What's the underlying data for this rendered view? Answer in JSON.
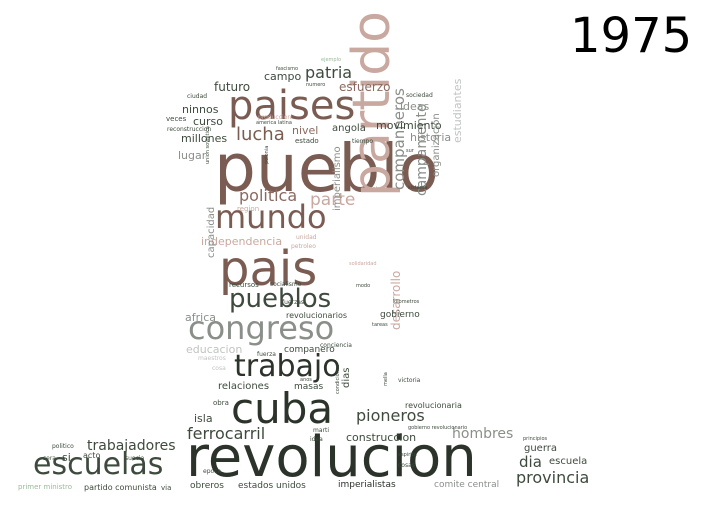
{
  "year_label": "1975",
  "palette": {
    "darkest": "#2b332b",
    "dark": "#3d4a3d",
    "brown": "#7a5c52",
    "brown_mid": "#8a6a60",
    "pink": "#c9a8a0",
    "pink_light": "#d8bcb4",
    "gray": "#8a8f8a",
    "gray_mid": "#a0a4a0",
    "light": "#c0c4c0",
    "green_light": "#9cb89c"
  },
  "words": [
    {
      "text": "revolucion",
      "tone": "darkest",
      "weight": 10
    },
    {
      "text": "pueblo",
      "tone": "brown",
      "weight": 10
    },
    {
      "text": "partido",
      "tone": "pink",
      "weight": 9
    },
    {
      "text": "pais",
      "tone": "brown",
      "weight": 8
    },
    {
      "text": "cuba",
      "tone": "darkest",
      "weight": 8
    },
    {
      "text": "paises",
      "tone": "brown",
      "weight": 7
    },
    {
      "text": "escuelas",
      "tone": "dark",
      "weight": 6
    },
    {
      "text": "congreso",
      "tone": "gray",
      "weight": 6
    },
    {
      "text": "mundo",
      "tone": "brown",
      "weight": 6
    },
    {
      "text": "trabajo",
      "tone": "darkest",
      "weight": 6
    },
    {
      "text": "pueblos",
      "tone": "dark",
      "weight": 5
    },
    {
      "text": "politica",
      "tone": "brown_mid",
      "weight": 4
    },
    {
      "text": "parte",
      "tone": "pink",
      "weight": 4
    },
    {
      "text": "lucha",
      "tone": "brown",
      "weight": 4
    },
    {
      "text": "patria",
      "tone": "dark",
      "weight": 4
    },
    {
      "text": "companneros",
      "tone": "gray",
      "weight": 4
    },
    {
      "text": "campamento",
      "tone": "gray",
      "weight": 4
    },
    {
      "text": "pioneros",
      "tone": "dark",
      "weight": 4
    },
    {
      "text": "ferrocarril",
      "tone": "dark",
      "weight": 4
    },
    {
      "text": "trabajadores",
      "tone": "dark",
      "weight": 3
    },
    {
      "text": "hombres",
      "tone": "gray",
      "weight": 3
    },
    {
      "text": "provincia",
      "tone": "dark",
      "weight": 3
    },
    {
      "text": "dia",
      "tone": "dark",
      "weight": 3
    },
    {
      "text": "desarrollo",
      "tone": "pink",
      "weight": 3
    },
    {
      "text": "esfuerzo",
      "tone": "brown_mid",
      "weight": 2
    },
    {
      "text": "futuro",
      "tone": "dark",
      "weight": 2
    },
    {
      "text": "campo",
      "tone": "dark",
      "weight": 2
    },
    {
      "text": "ninnos",
      "tone": "dark",
      "weight": 2
    },
    {
      "text": "curso",
      "tone": "dark",
      "weight": 2
    },
    {
      "text": "millones",
      "tone": "dark",
      "weight": 2
    },
    {
      "text": "lugar",
      "tone": "gray",
      "weight": 2
    },
    {
      "text": "nivel",
      "tone": "brown_mid",
      "weight": 2
    },
    {
      "text": "angola",
      "tone": "dark",
      "weight": 2
    },
    {
      "text": "movimiento",
      "tone": "dark",
      "weight": 2
    },
    {
      "text": "ideas",
      "tone": "gray",
      "weight": 2
    },
    {
      "text": "historia",
      "tone": "gray",
      "weight": 2
    },
    {
      "text": "organizacion",
      "tone": "gray",
      "weight": 2
    },
    {
      "text": "estudiantes",
      "tone": "light",
      "weight": 2
    },
    {
      "text": "independencia",
      "tone": "pink",
      "weight": 2
    },
    {
      "text": "capacidad",
      "tone": "gray",
      "weight": 2
    },
    {
      "text": "imperialismo",
      "tone": "gray",
      "weight": 2
    },
    {
      "text": "africa",
      "tone": "gray",
      "weight": 2
    },
    {
      "text": "educacion",
      "tone": "light",
      "weight": 2
    },
    {
      "text": "companero",
      "tone": "dark",
      "weight": 1
    },
    {
      "text": "relaciones",
      "tone": "dark",
      "weight": 2
    },
    {
      "text": "masas",
      "tone": "dark",
      "weight": 1
    },
    {
      "text": "dias",
      "tone": "dark",
      "weight": 2
    },
    {
      "text": "isla",
      "tone": "dark",
      "weight": 2
    },
    {
      "text": "construccion",
      "tone": "dark",
      "weight": 2
    },
    {
      "text": "guerra",
      "tone": "dark",
      "weight": 2
    },
    {
      "text": "escuela",
      "tone": "dark",
      "weight": 2
    },
    {
      "text": "gobierno",
      "tone": "dark",
      "weight": 1
    },
    {
      "text": "revolucionarios",
      "tone": "dark",
      "weight": 1
    },
    {
      "text": "revolucionaria",
      "tone": "dark",
      "weight": 1
    },
    {
      "text": "obreros",
      "tone": "dark",
      "weight": 1
    },
    {
      "text": "estados unidos",
      "tone": "dark",
      "weight": 1
    },
    {
      "text": "imperialistas",
      "tone": "darkest",
      "weight": 1
    },
    {
      "text": "comite central",
      "tone": "gray",
      "weight": 1
    },
    {
      "text": "partido comunista",
      "tone": "dark",
      "weight": 1
    },
    {
      "text": "primer ministro",
      "tone": "green_light",
      "weight": 1
    },
    {
      "text": "si",
      "tone": "dark",
      "weight": 2
    },
    {
      "text": "acto",
      "tone": "dark",
      "weight": 1
    },
    {
      "text": "obra",
      "tone": "dark",
      "weight": 1
    },
    {
      "text": "recursos",
      "tone": "dark",
      "weight": 1
    },
    {
      "text": "socialismo",
      "tone": "dark",
      "weight": 1
    },
    {
      "text": "sociedad",
      "tone": "dark",
      "weight": 1
    },
    {
      "text": "ciudad",
      "tone": "dark",
      "weight": 1
    },
    {
      "text": "veces",
      "tone": "dark",
      "weight": 1
    },
    {
      "text": "produccion",
      "tone": "pink",
      "weight": 1
    },
    {
      "text": "estado",
      "tone": "dark",
      "weight": 1
    },
    {
      "text": "tiempo",
      "tone": "dark",
      "weight": 1
    },
    {
      "text": "america latina",
      "tone": "dark",
      "weight": 1
    },
    {
      "text": "fascismo",
      "tone": "dark",
      "weight": 1
    },
    {
      "text": "numero",
      "tone": "dark",
      "weight": 1
    },
    {
      "text": "ejemplo",
      "tone": "green_light",
      "weight": 1
    },
    {
      "text": "sur",
      "tone": "dark",
      "weight": 1
    },
    {
      "text": "region",
      "tone": "pink",
      "weight": 1
    },
    {
      "text": "unidad",
      "tone": "pink",
      "weight": 1
    },
    {
      "text": "juventud",
      "tone": "pink",
      "weight": 1
    },
    {
      "text": "sistema",
      "tone": "dark",
      "weight": 1
    },
    {
      "text": "solidaridad",
      "tone": "pink",
      "weight": 1
    },
    {
      "text": "petroleo",
      "tone": "pink",
      "weight": 1
    },
    {
      "text": "modo",
      "tone": "dark",
      "weight": 1
    },
    {
      "text": "kilometros",
      "tone": "dark",
      "weight": 1
    },
    {
      "text": "fuerzas",
      "tone": "dark",
      "weight": 1
    },
    {
      "text": "tareas",
      "tone": "dark",
      "weight": 1
    },
    {
      "text": "conciencia",
      "tone": "dark",
      "weight": 1
    },
    {
      "text": "fuerza",
      "tone": "dark",
      "weight": 1
    },
    {
      "text": "victoria",
      "tone": "dark",
      "weight": 1
    },
    {
      "text": "marti",
      "tone": "dark",
      "weight": 1
    },
    {
      "text": "idea",
      "tone": "dark",
      "weight": 1
    },
    {
      "text": "gobierno revolucionario",
      "tone": "dark",
      "weight": 1
    },
    {
      "text": "principios",
      "tone": "dark",
      "weight": 1
    },
    {
      "text": "espiritu",
      "tone": "dark",
      "weight": 1
    },
    {
      "text": "cosas",
      "tone": "dark",
      "weight": 1
    },
    {
      "text": "politico",
      "tone": "dark",
      "weight": 1
    },
    {
      "text": "sera",
      "tone": "dark",
      "weight": 1
    },
    {
      "text": "suecia",
      "tone": "dark",
      "weight": 1
    },
    {
      "text": "via",
      "tone": "dark",
      "weight": 1
    },
    {
      "text": "epoca",
      "tone": "dark",
      "weight": 1
    },
    {
      "text": "reconstruccion",
      "tone": "dark",
      "weight": 1
    },
    {
      "text": "polonia",
      "tone": "dark",
      "weight": 1
    },
    {
      "text": "union sovietica",
      "tone": "dark",
      "weight": 1
    },
    {
      "text": "condiciones",
      "tone": "dark",
      "weight": 1
    },
    {
      "text": "mella",
      "tone": "dark",
      "weight": 1
    },
    {
      "text": "maestros",
      "tone": "light",
      "weight": 1
    },
    {
      "text": "cosa",
      "tone": "light",
      "weight": 1
    },
    {
      "text": "anos",
      "tone": "dark",
      "weight": 1
    }
  ]
}
